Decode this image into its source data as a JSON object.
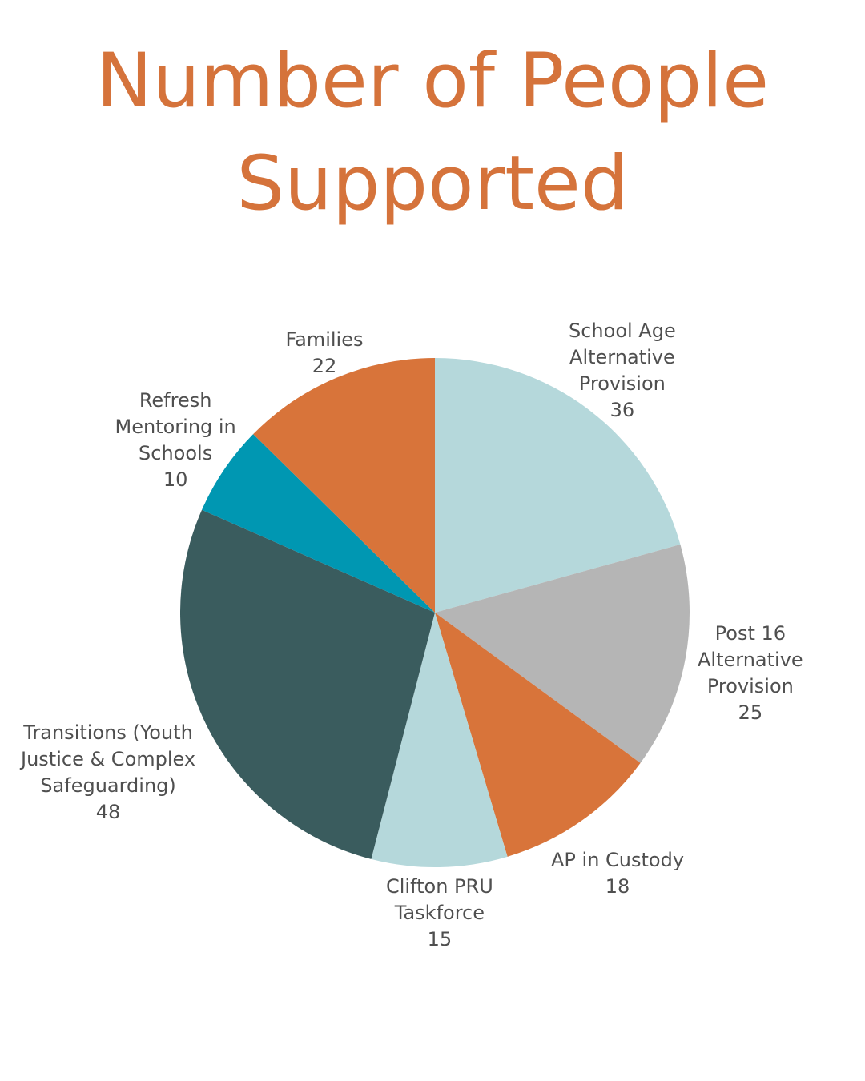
{
  "colors": {
    "title": "#d5733b",
    "label": "#4f4f4f"
  },
  "chart_data": {
    "type": "pie",
    "title_lines": [
      "Number of People",
      "Supported"
    ],
    "start_angle_deg": 0,
    "direction": "clockwise",
    "slices": [
      {
        "label": "School Age\nAlternative\nProvision",
        "value": 36,
        "color": "#b5d8db"
      },
      {
        "label": "Post 16\nAlternative\nProvision",
        "value": 25,
        "color": "#b5b5b5"
      },
      {
        "label": "AP in Custody",
        "value": 18,
        "color": "#d8743a"
      },
      {
        "label": "Clifton PRU\nTaskforce",
        "value": 15,
        "color": "#b5d8db"
      },
      {
        "label": "Transitions (Youth\nJustice & Complex\nSafeguarding)",
        "value": 48,
        "color": "#3a5c5e"
      },
      {
        "label": "Refresh\nMentoring in\nSchools",
        "value": 10,
        "color": "#0097b2"
      },
      {
        "label": "Families",
        "value": 22,
        "color": "#d8743a"
      }
    ]
  }
}
